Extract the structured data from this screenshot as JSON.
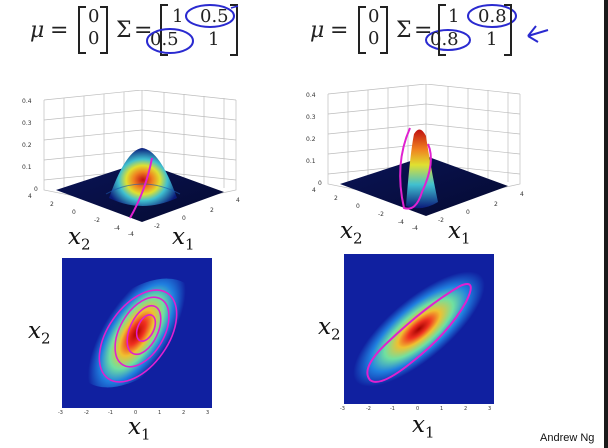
{
  "slide": {
    "credit": "Andrew Ng"
  },
  "left": {
    "mu_symbol": "μ",
    "equals": "=",
    "mu_values": [
      "0",
      "0"
    ],
    "sigma_symbol": "Σ",
    "sigma_values": [
      "1",
      "0.5",
      "0.5",
      "1"
    ],
    "xlabel_3d": "x",
    "xlabel_3d_sub": "1",
    "ylabel_3d": "x",
    "ylabel_3d_sub": "2",
    "xlabel_2d": "x",
    "xlabel_2d_sub": "1",
    "ylabel_2d": "x",
    "ylabel_2d_sub": "2"
  },
  "right": {
    "mu_symbol": "μ",
    "equals": "=",
    "mu_values": [
      "0",
      "0"
    ],
    "sigma_symbol": "Σ",
    "sigma_values": [
      "1",
      "0.8",
      "0.8",
      "1"
    ],
    "xlabel_3d": "x",
    "xlabel_3d_sub": "1",
    "ylabel_3d": "x",
    "ylabel_3d_sub": "2",
    "xlabel_2d": "x",
    "xlabel_2d_sub": "1",
    "ylabel_2d": "x",
    "ylabel_2d_sub": "2"
  },
  "ticks": {
    "z_left": [
      "0.4",
      "0.3",
      "0.2",
      "0.1",
      "0"
    ],
    "z_right": [
      "0.4",
      "0.3",
      "0.2",
      "0.1",
      "0"
    ],
    "base": [
      "4",
      "2",
      "0",
      "-2",
      "-4"
    ],
    "heat": [
      "-3",
      "-2",
      "-1",
      "0",
      "1",
      "2",
      "3"
    ]
  },
  "colors": {
    "annotation": "#e020d0",
    "circle_ink": "#2a2ad0"
  }
}
